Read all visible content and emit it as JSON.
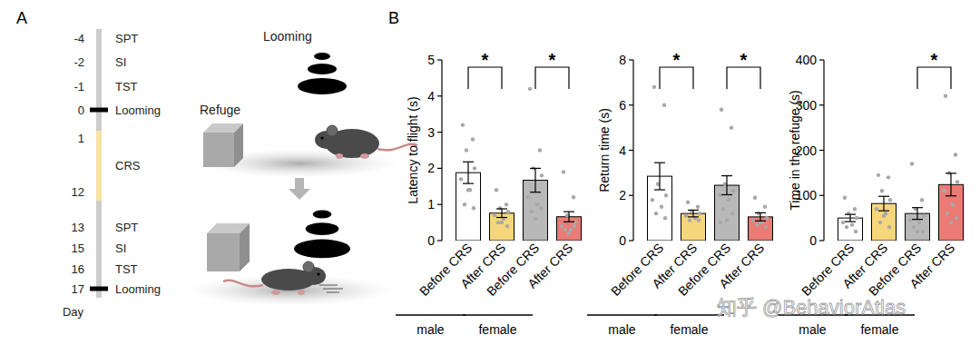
{
  "panel_labels": [
    "A",
    "B"
  ],
  "timeline": {
    "axis_label": "Day",
    "ticks": [
      -4,
      -2,
      -1,
      0,
      1,
      12,
      13,
      15,
      16,
      17
    ],
    "events": [
      {
        "label": "SPT",
        "day": -4
      },
      {
        "label": "SI",
        "day": -2
      },
      {
        "label": "TST",
        "day": -1
      },
      {
        "label": "Looming",
        "day": 0,
        "marker": "bar"
      },
      {
        "label": "CRS",
        "start": 1,
        "end": 12
      },
      {
        "label": "SPT",
        "day": 13
      },
      {
        "label": "SI",
        "day": 15
      },
      {
        "label": "TST",
        "day": 16
      },
      {
        "label": "Looming",
        "day": 17,
        "marker": "bar"
      }
    ]
  },
  "illustration": {
    "stimulus": "Looming",
    "refuge": "Refuge"
  },
  "chart_data": [
    {
      "type": "bar",
      "y_label": "Latency to flight (s)",
      "categories": [
        "Before CRS",
        "After CRS",
        "Before CRS",
        "After CRS"
      ],
      "groups": [
        {
          "label": "male",
          "span": [
            0,
            1
          ]
        },
        {
          "label": "female",
          "span": [
            2,
            3
          ]
        }
      ],
      "values": [
        1.88,
        0.76,
        1.67,
        0.66
      ],
      "errors": [
        0.3,
        0.12,
        0.33,
        0.14
      ],
      "points": [
        [
          3.2,
          2.8,
          2.5,
          2.0,
          1.7,
          1.4,
          1.0,
          0.9,
          1.4
        ],
        [
          1.4,
          1.0,
          0.9,
          0.8,
          0.7,
          0.6,
          0.5,
          0.4,
          0.5
        ],
        [
          4.2,
          2.5,
          2.0,
          1.8,
          1.2,
          1.0,
          0.8,
          0.9,
          0.6
        ],
        [
          1.9,
          1.2,
          0.7,
          0.5,
          0.4,
          0.3,
          0.3,
          0.4,
          0.2
        ]
      ],
      "colors": [
        "#ffffff",
        "#f5d67b",
        "#b8b8b8",
        "#ec7a75"
      ],
      "ylim": [
        0,
        5
      ],
      "yticks": [
        0,
        1,
        2,
        3,
        4,
        5
      ],
      "significance": [
        {
          "pair": [
            0,
            1
          ],
          "label": "*"
        },
        {
          "pair": [
            2,
            3
          ],
          "label": "*"
        }
      ]
    },
    {
      "type": "bar",
      "y_label": "Return time (s)",
      "categories": [
        "Before CRS",
        "After CRS",
        "Before CRS",
        "After CRS"
      ],
      "groups": [
        {
          "label": "male",
          "span": [
            0,
            1
          ]
        },
        {
          "label": "female",
          "span": [
            2,
            3
          ]
        }
      ],
      "values": [
        2.85,
        1.2,
        2.45,
        1.05
      ],
      "errors": [
        0.6,
        0.15,
        0.42,
        0.18
      ],
      "points": [
        [
          6.8,
          6.0,
          2.5,
          2.0,
          1.8,
          1.5,
          1.2,
          1.0
        ],
        [
          1.7,
          1.5,
          1.3,
          1.2,
          1.1,
          1.0,
          0.9,
          0.9
        ],
        [
          5.8,
          5.0,
          2.5,
          2.2,
          2.0,
          1.8,
          1.4,
          1.2,
          0.9,
          0.8
        ],
        [
          1.9,
          1.5,
          1.2,
          1.0,
          0.9,
          0.8,
          0.7,
          0.6,
          0.8
        ]
      ],
      "colors": [
        "#ffffff",
        "#f5d67b",
        "#b8b8b8",
        "#ec7a75"
      ],
      "ylim": [
        0,
        8
      ],
      "yticks": [
        0,
        2,
        4,
        6,
        8
      ],
      "significance": [
        {
          "pair": [
            0,
            1
          ],
          "label": "*"
        },
        {
          "pair": [
            2,
            3
          ],
          "label": "*"
        }
      ]
    },
    {
      "type": "bar",
      "y_label": "Time in the refuge (s)",
      "categories": [
        "Before CRS",
        "After CRS",
        "Before CRS",
        "After CRS"
      ],
      "groups": [
        {
          "label": "male",
          "span": [
            0,
            1
          ]
        },
        {
          "label": "female",
          "span": [
            2,
            3
          ]
        }
      ],
      "values": [
        50,
        82,
        60,
        124
      ],
      "errors": [
        8,
        16,
        13,
        25
      ],
      "points": [
        [
          95,
          70,
          60,
          50,
          40,
          35,
          30,
          20
        ],
        [
          145,
          140,
          110,
          90,
          70,
          60,
          40,
          30,
          55
        ],
        [
          170,
          90,
          70,
          55,
          45,
          40,
          30,
          20,
          20
        ],
        [
          320,
          190,
          150,
          130,
          110,
          80,
          60,
          50,
          40,
          110
        ]
      ],
      "colors": [
        "#ffffff",
        "#f5d67b",
        "#b8b8b8",
        "#ec7a75"
      ],
      "ylim": [
        0,
        400
      ],
      "yticks": [
        0,
        100,
        200,
        300,
        400
      ],
      "significance": [
        {
          "pair": [
            2,
            3
          ],
          "label": "*"
        }
      ]
    }
  ],
  "watermark": "知乎 @BehaviorAtlas"
}
